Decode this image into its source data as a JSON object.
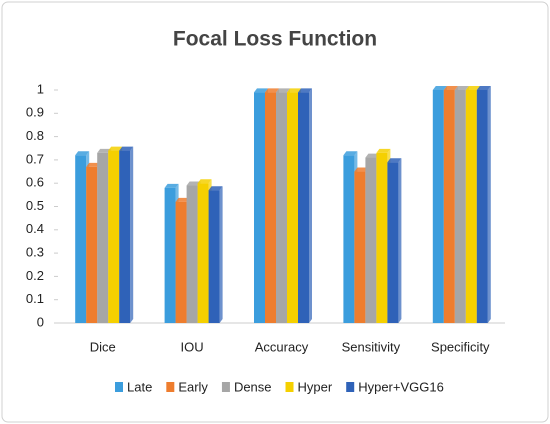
{
  "chart_data": {
    "type": "bar",
    "title": "Focal Loss Function",
    "categories": [
      "Dice",
      "IOU",
      "Accuracy",
      "Sensitivity",
      "Specificity"
    ],
    "series": [
      {
        "name": "Late",
        "color": "#3b9ddd",
        "values": [
          0.72,
          0.58,
          0.99,
          0.72,
          1
        ]
      },
      {
        "name": "Early",
        "color": "#ee7d2e",
        "values": [
          0.67,
          0.52,
          0.99,
          0.65,
          1
        ]
      },
      {
        "name": "Dense",
        "color": "#a6a6a6",
        "values": [
          0.73,
          0.59,
          0.99,
          0.71,
          1
        ]
      },
      {
        "name": "Hyper",
        "color": "#f5d000",
        "values": [
          0.74,
          0.6,
          0.99,
          0.73,
          1
        ]
      },
      {
        "name": "Hyper+VGG16",
        "color": "#2f62b8",
        "values": [
          0.74,
          0.57,
          0.99,
          0.69,
          1
        ]
      }
    ],
    "ylim": [
      0,
      1
    ],
    "yticks": [
      0,
      0.1,
      0.2,
      0.3,
      0.4,
      0.5,
      0.6,
      0.7,
      0.8,
      0.9,
      1
    ],
    "legend": "bottom"
  }
}
